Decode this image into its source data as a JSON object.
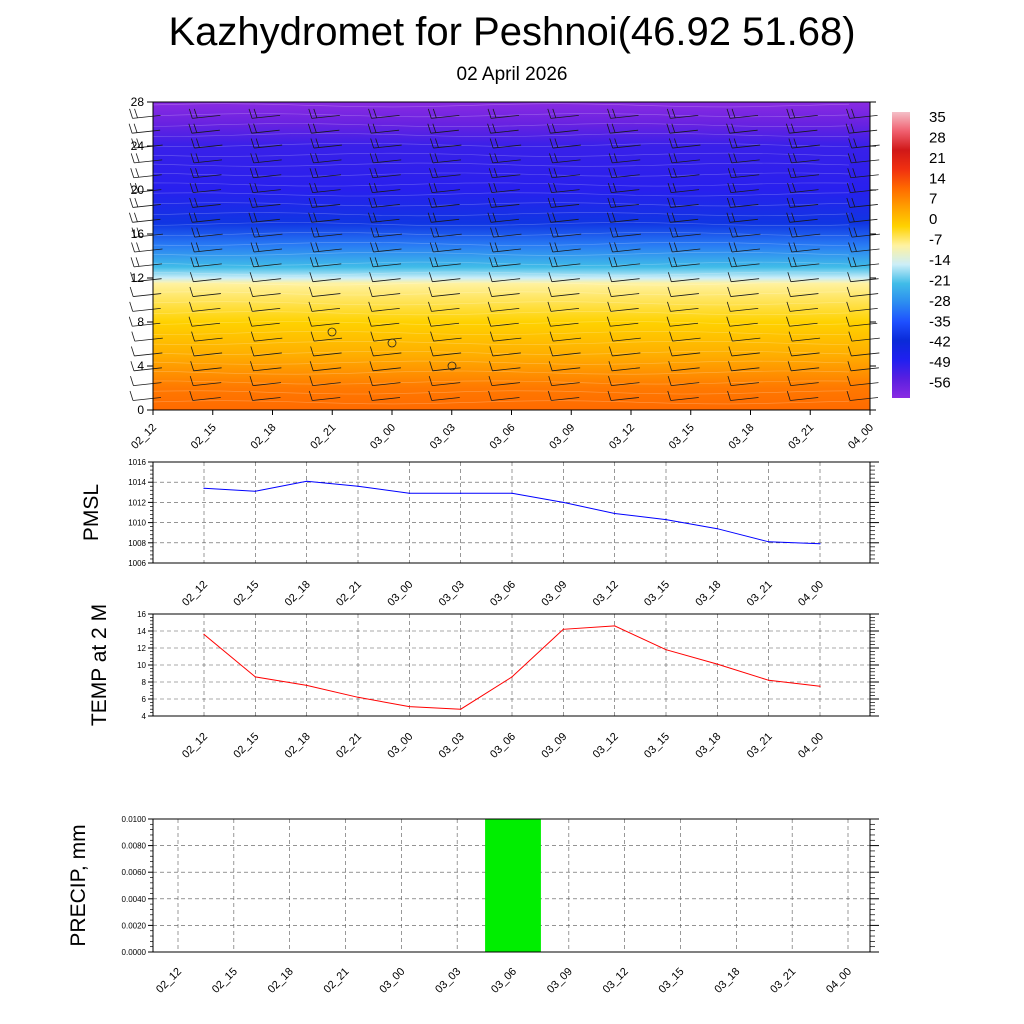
{
  "title": "Kazhydromet for Peshnoi(46.92 51.68)",
  "subtitle": "02 April 2026",
  "time_labels": [
    "02_12",
    "02_15",
    "02_18",
    "02_21",
    "03_00",
    "03_03",
    "03_06",
    "03_09",
    "03_12",
    "03_15",
    "03_18",
    "03_21",
    "04_00"
  ],
  "chart_data": [
    {
      "type": "heatmap",
      "name": "temperature-height cross section",
      "x": [
        "02_12",
        "02_15",
        "02_18",
        "02_21",
        "03_00",
        "03_03",
        "03_06",
        "03_09",
        "03_12",
        "03_15",
        "03_18",
        "03_21",
        "04_00"
      ],
      "y_ticks": [
        0,
        4,
        8,
        12,
        16,
        20,
        24,
        28
      ],
      "ylim": [
        0,
        28
      ],
      "colorbar": {
        "labels": [
          "35",
          "28",
          "21",
          "14",
          "7",
          "0",
          "-7",
          "-14",
          "-21",
          "-28",
          "-35",
          "-42",
          "-49",
          "-56"
        ],
        "range": [
          -63,
          42
        ],
        "colors": [
          {
            "value": -63,
            "color": "#8a2be2"
          },
          {
            "value": -56,
            "color": "#5a1fe0"
          },
          {
            "value": -49,
            "color": "#2020f0"
          },
          {
            "value": -42,
            "color": "#0a2ad8"
          },
          {
            "value": -35,
            "color": "#1e50ff"
          },
          {
            "value": -28,
            "color": "#2c8cf0"
          },
          {
            "value": -21,
            "color": "#40bce8"
          },
          {
            "value": -14,
            "color": "#cceef8"
          },
          {
            "value": -7,
            "color": "#fff2a0"
          },
          {
            "value": 0,
            "color": "#ffd200"
          },
          {
            "value": 7,
            "color": "#ffa000"
          },
          {
            "value": 14,
            "color": "#ff6a00"
          },
          {
            "value": 21,
            "color": "#f03010"
          },
          {
            "value": 28,
            "color": "#d01818"
          },
          {
            "value": 35,
            "color": "#f06070"
          },
          {
            "value": 42,
            "color": "#f4c0c8"
          }
        ]
      },
      "level_temps": [
        {
          "level": 0,
          "temp": 14
        },
        {
          "level": 2,
          "temp": 12
        },
        {
          "level": 5,
          "temp": 5
        },
        {
          "level": 8,
          "temp": 0
        },
        {
          "level": 11.5,
          "temp": -7
        },
        {
          "level": 12,
          "temp": -14
        },
        {
          "level": 13,
          "temp": -21
        },
        {
          "level": 15,
          "temp": -30
        },
        {
          "level": 17,
          "temp": -40
        },
        {
          "level": 20,
          "temp": -50
        },
        {
          "level": 24,
          "temp": -52
        },
        {
          "level": 26,
          "temp": -58
        },
        {
          "level": 28,
          "temp": -63
        }
      ]
    },
    {
      "type": "line",
      "name": "PMSL",
      "x": [
        "02_12",
        "02_15",
        "02_18",
        "02_21",
        "03_00",
        "03_03",
        "03_06",
        "03_09",
        "03_12",
        "03_15",
        "03_18",
        "03_21",
        "04_00"
      ],
      "values": [
        1013.4,
        1013.1,
        1014.1,
        1013.6,
        1012.9,
        1012.9,
        1012.9,
        1012.0,
        1010.9,
        1010.3,
        1009.4,
        1008.1,
        1007.9
      ],
      "ylabel": "PMSL",
      "ylim": [
        1006,
        1016
      ],
      "yticks": [
        "1006",
        "1008",
        "1010",
        "1012",
        "1014",
        "1016"
      ],
      "color": "#0000ff",
      "grid": true
    },
    {
      "type": "line",
      "name": "TEMP at 2 M",
      "x": [
        "02_12",
        "02_15",
        "02_18",
        "02_21",
        "03_00",
        "03_03",
        "03_06",
        "03_09",
        "03_12",
        "03_15",
        "03_18",
        "03_21",
        "04_00"
      ],
      "values": [
        13.6,
        8.6,
        7.6,
        6.2,
        5.1,
        4.8,
        8.6,
        14.2,
        14.6,
        11.8,
        10.1,
        8.2,
        7.5
      ],
      "ylabel": "TEMP at 2 M",
      "ylim": [
        4,
        16
      ],
      "yticks": [
        "4",
        "6",
        "8",
        "10",
        "12",
        "14",
        "16"
      ],
      "color": "#ff0000",
      "grid": true
    },
    {
      "type": "bar",
      "name": "PRECIP, mm",
      "x": [
        "02_12",
        "02_15",
        "02_18",
        "02_21",
        "03_00",
        "03_03",
        "03_06",
        "03_09",
        "03_12",
        "03_15",
        "03_18",
        "03_21",
        "04_00"
      ],
      "values": [
        0,
        0,
        0,
        0,
        0,
        0,
        0.01,
        0,
        0,
        0,
        0,
        0,
        0
      ],
      "ylabel": "PRECIP, mm",
      "ylim": [
        0,
        0.01
      ],
      "yticks": [
        "0.0000",
        "0.0020",
        "0.0040",
        "0.0060",
        "0.0080",
        "0.0100"
      ],
      "color": "#00ee00",
      "grid": true
    }
  ]
}
